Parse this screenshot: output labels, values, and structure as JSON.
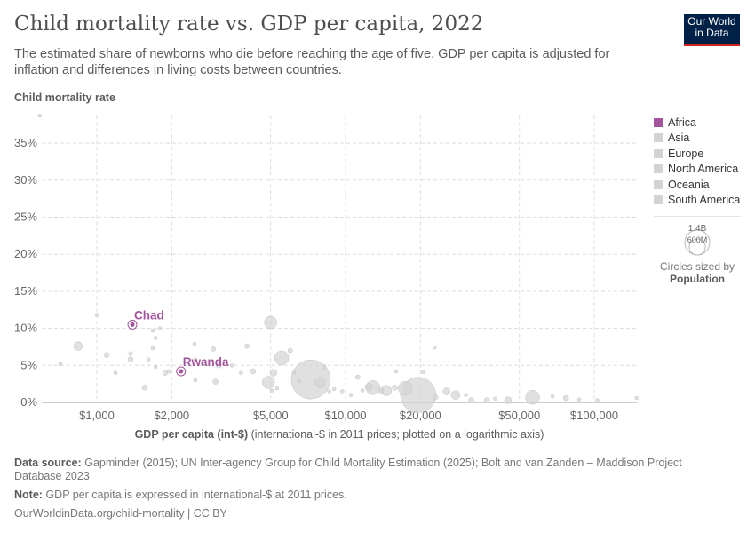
{
  "header": {
    "title": "Child mortality rate vs. GDP per capita, 2022",
    "subtitle": "The estimated share of newborns who die before reaching the age of five. GDP per capita is adjusted for inflation and differences in living costs between countries.",
    "logo_line1": "Our World",
    "logo_line2": "in Data"
  },
  "legend": {
    "items": [
      {
        "label": "Africa",
        "color": "#a2559c"
      },
      {
        "label": "Asia",
        "color": "#d3d3d3"
      },
      {
        "label": "Europe",
        "color": "#d3d3d3"
      },
      {
        "label": "North America",
        "color": "#d3d3d3"
      },
      {
        "label": "Oceania",
        "color": "#d3d3d3"
      },
      {
        "label": "South America",
        "color": "#d3d3d3"
      }
    ],
    "size_large": "1.4B",
    "size_small": "600M",
    "size_caption": "Circles sized by",
    "size_variable": "Population"
  },
  "footer": {
    "source_label": "Data source:",
    "source": "Gapminder (2015); UN Inter-agency Group for Child Mortality Estimation (2025); Bolt and van Zanden – Maddison Project Database 2023",
    "note_label": "Note:",
    "note": "GDP per capita is expressed in international-$ at 2011 prices.",
    "url": "OurWorldinData.org/child-mortality | CC BY"
  },
  "chart_data": {
    "type": "scatter",
    "ylabel": "Child mortality rate",
    "xlabel_bold": "GDP per capita (int-$)",
    "xlabel_rest": "(international-$ in 2011 prices; plotted on a logarithmic axis)",
    "x_scale": "log",
    "xlim": [
      600,
      148000
    ],
    "ylim": [
      0,
      38.7
    ],
    "x_ticks": [
      {
        "v": 1000,
        "label": "$1,000"
      },
      {
        "v": 2000,
        "label": "$2,000"
      },
      {
        "v": 5000,
        "label": "$5,000"
      },
      {
        "v": 10000,
        "label": "$10,000"
      },
      {
        "v": 20000,
        "label": "$20,000"
      },
      {
        "v": 50000,
        "label": "$50,000"
      },
      {
        "v": 100000,
        "label": "$100,000"
      }
    ],
    "y_ticks": [
      {
        "v": 0,
        "label": "0%"
      },
      {
        "v": 5,
        "label": "5%"
      },
      {
        "v": 10,
        "label": "10%"
      },
      {
        "v": 15,
        "label": "15%"
      },
      {
        "v": 20,
        "label": "20%"
      },
      {
        "v": 25,
        "label": "25%"
      },
      {
        "v": 30,
        "label": "30%"
      },
      {
        "v": 35,
        "label": "35%"
      }
    ],
    "grid": true,
    "highlighted": [
      {
        "name": "Chad",
        "gdp": 1390,
        "child_mortality": 10.5,
        "color": "#a2559c"
      },
      {
        "name": "Rwanda",
        "gdp": 2180,
        "child_mortality": 4.2,
        "color": "#a2559c"
      }
    ],
    "background_points_gdp_mortality_popM": [
      [
        590,
        38.7,
        5
      ],
      [
        714,
        5.2,
        5
      ],
      [
        841,
        7.6,
        70
      ],
      [
        1000,
        11.8,
        8
      ],
      [
        1095,
        6.4,
        26
      ],
      [
        1188,
        4.0,
        10
      ],
      [
        1366,
        6.6,
        15
      ],
      [
        1366,
        5.8,
        26
      ],
      [
        1560,
        2.0,
        25
      ],
      [
        1679,
        7.3,
        10
      ],
      [
        1721,
        8.7,
        10
      ],
      [
        1679,
        9.7,
        10
      ],
      [
        1795,
        10,
        8
      ],
      [
        1612,
        5.8,
        10
      ],
      [
        1721,
        4.8,
        10
      ],
      [
        1946,
        4.2,
        12
      ],
      [
        1884,
        4.0,
        26
      ],
      [
        2470,
        7.9,
        8
      ],
      [
        2490,
        5.8,
        10
      ],
      [
        2490,
        3.0,
        8
      ],
      [
        2940,
        7.2,
        20
      ],
      [
        3000,
        2.8,
        26
      ],
      [
        3090,
        5.0,
        26
      ],
      [
        3500,
        5.0,
        8
      ],
      [
        4015,
        7.6,
        20
      ],
      [
        3800,
        4.0,
        10
      ],
      [
        4250,
        4.2,
        26
      ],
      [
        5000,
        10.8,
        142
      ],
      [
        4900,
        2.7,
        142
      ],
      [
        5130,
        4.0,
        46
      ],
      [
        5540,
        6.0,
        185
      ],
      [
        5990,
        7.0,
        20
      ],
      [
        5050,
        1.6,
        8
      ],
      [
        5300,
        1.9,
        10
      ],
      [
        6200,
        4.0,
        8
      ],
      [
        6500,
        2.9,
        8
      ],
      [
        7250,
        3.1,
        1400
      ],
      [
        7900,
        2.7,
        100
      ],
      [
        8200,
        4.8,
        20
      ],
      [
        8600,
        1.5,
        8
      ],
      [
        9700,
        1.5,
        8
      ],
      [
        11200,
        3.4,
        20
      ],
      [
        11700,
        1.6,
        10
      ],
      [
        12400,
        2.1,
        46
      ],
      [
        12900,
        2.0,
        185
      ],
      [
        13900,
        1.6,
        26
      ],
      [
        14600,
        1.6,
        100
      ],
      [
        15800,
        2.0,
        26
      ],
      [
        17400,
        1.9,
        185
      ],
      [
        19600,
        1.0,
        1157
      ],
      [
        23000,
        0.7,
        26
      ],
      [
        22800,
        7.4,
        5
      ],
      [
        25500,
        1.5,
        46
      ],
      [
        27700,
        1.0,
        72
      ],
      [
        32000,
        0.3,
        26
      ],
      [
        37000,
        0.3,
        26
      ],
      [
        45000,
        0.3,
        46
      ],
      [
        56500,
        0.7,
        185
      ],
      [
        68000,
        0.8,
        5
      ],
      [
        77000,
        0.6,
        26
      ],
      [
        87000,
        0.4,
        8
      ],
      [
        103000,
        0.3,
        8
      ],
      [
        148000,
        0.6,
        8
      ],
      [
        16000,
        4.2,
        5
      ],
      [
        20500,
        4.1,
        5
      ],
      [
        30500,
        1.0,
        10
      ],
      [
        40000,
        0.5,
        10
      ],
      [
        9000,
        1.8,
        10
      ],
      [
        10500,
        1.0,
        10
      ]
    ]
  }
}
